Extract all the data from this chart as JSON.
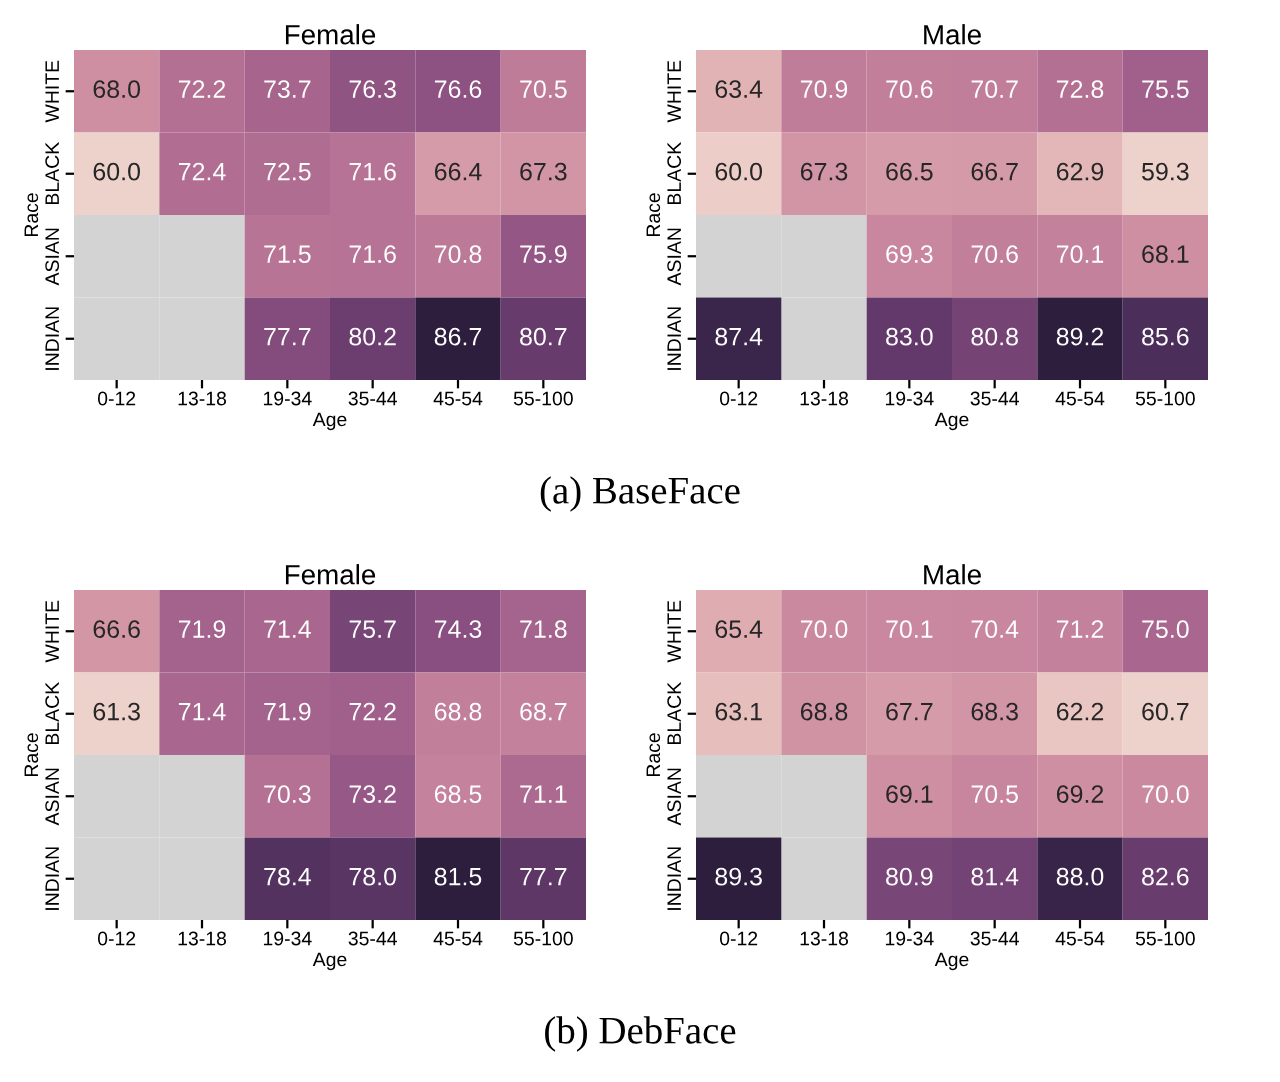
{
  "chart_data": [
    {
      "type": "heatmap",
      "title": "Female",
      "xlabel": "Age",
      "ylabel": "Race",
      "categories": [
        "0-12",
        "13-18",
        "19-34",
        "35-44",
        "45-54",
        "55-100"
      ],
      "y_categories": [
        "WHITE",
        "BLACK",
        "ASIAN",
        "INDIAN"
      ],
      "cells": [
        [
          68.0,
          72.2,
          73.7,
          76.3,
          76.6,
          70.5
        ],
        [
          60.0,
          72.4,
          72.5,
          71.6,
          66.4,
          67.3
        ],
        [
          null,
          null,
          71.5,
          71.6,
          70.8,
          75.9
        ],
        [
          null,
          null,
          77.7,
          80.2,
          86.7,
          80.7
        ]
      ],
      "cell_labels": [
        [
          "68.0",
          "72.2",
          "73.7",
          "76.3",
          "76.6",
          "70.5"
        ],
        [
          "60.0",
          "72.4",
          "72.5",
          "71.6",
          "66.4",
          "67.3"
        ],
        [
          null,
          null,
          "71.5",
          "71.6",
          "70.8",
          "75.9"
        ],
        [
          null,
          null,
          "77.7",
          "80.2",
          "86.7",
          "80.7"
        ]
      ]
    },
    {
      "type": "heatmap",
      "title": "Male",
      "xlabel": "Age",
      "ylabel": "Race",
      "categories": [
        "0-12",
        "13-18",
        "19-34",
        "35-44",
        "45-54",
        "55-100"
      ],
      "y_categories": [
        "WHITE",
        "BLACK",
        "ASIAN",
        "INDIAN"
      ],
      "cells": [
        [
          63.4,
          70.9,
          70.6,
          70.7,
          72.8,
          75.5
        ],
        [
          60.0,
          67.3,
          66.5,
          66.7,
          62.9,
          59.3
        ],
        [
          null,
          null,
          69.3,
          70.6,
          70.1,
          68.1
        ],
        [
          87.4,
          null,
          83.0,
          80.8,
          89.2,
          85.6
        ]
      ],
      "cell_labels": [
        [
          "63.4",
          "70.9",
          "70.6",
          "70.7",
          "72.8",
          "75.5"
        ],
        [
          "60.0",
          "67.3",
          "66.5",
          "66.7",
          "62.9",
          "59.3"
        ],
        [
          null,
          null,
          "69.3",
          "70.6",
          "70.1",
          "68.1"
        ],
        [
          "87.4",
          null,
          "83.0",
          "80.8",
          "89.2",
          "85.6"
        ]
      ],
      "annotations": [
        "(a) BaseFace"
      ]
    },
    {
      "type": "heatmap",
      "title": "Female",
      "xlabel": "Age",
      "ylabel": "Race",
      "categories": [
        "0-12",
        "13-18",
        "19-34",
        "35-44",
        "45-54",
        "55-100"
      ],
      "y_categories": [
        "WHITE",
        "BLACK",
        "ASIAN",
        "INDIAN"
      ],
      "cells": [
        [
          66.6,
          71.9,
          71.4,
          75.7,
          74.3,
          71.8
        ],
        [
          61.3,
          71.4,
          71.9,
          72.2,
          68.8,
          68.7
        ],
        [
          null,
          null,
          70.3,
          73.2,
          68.5,
          71.1
        ],
        [
          null,
          null,
          78.4,
          78.0,
          81.5,
          77.7
        ]
      ],
      "cell_labels": [
        [
          "66.6",
          "71.9",
          "71.4",
          "75.7",
          "74.3",
          "71.8"
        ],
        [
          "61.3",
          "71.4",
          "71.9",
          "72.2",
          "68.8",
          "68.7"
        ],
        [
          null,
          null,
          "70.3",
          "73.2",
          "68.5",
          "71.1"
        ],
        [
          null,
          null,
          "78.4",
          "78.0",
          "81.5",
          "77.7"
        ]
      ]
    },
    {
      "type": "heatmap",
      "title": "Male",
      "xlabel": "Age",
      "ylabel": "Race",
      "categories": [
        "0-12",
        "13-18",
        "19-34",
        "35-44",
        "45-54",
        "55-100"
      ],
      "y_categories": [
        "WHITE",
        "BLACK",
        "ASIAN",
        "INDIAN"
      ],
      "cells": [
        [
          65.4,
          70.0,
          70.1,
          70.4,
          71.2,
          75.0
        ],
        [
          63.1,
          68.8,
          67.7,
          68.3,
          62.2,
          60.7
        ],
        [
          null,
          null,
          69.1,
          70.5,
          69.2,
          70.0
        ],
        [
          89.3,
          null,
          80.9,
          81.4,
          88.0,
          82.6
        ]
      ],
      "cell_labels": [
        [
          "65.4",
          "70.0",
          "70.1",
          "70.4",
          "71.2",
          "75.0"
        ],
        [
          "63.1",
          "68.8",
          "67.7",
          "68.3",
          "62.2",
          "60.7"
        ],
        [
          null,
          null,
          "69.1",
          "70.5",
          "69.2",
          "70.0"
        ],
        [
          "89.3",
          null,
          "80.9",
          "81.4",
          "88.0",
          "82.6"
        ]
      ],
      "annotations": [
        "(b) DebFace"
      ]
    }
  ]
}
